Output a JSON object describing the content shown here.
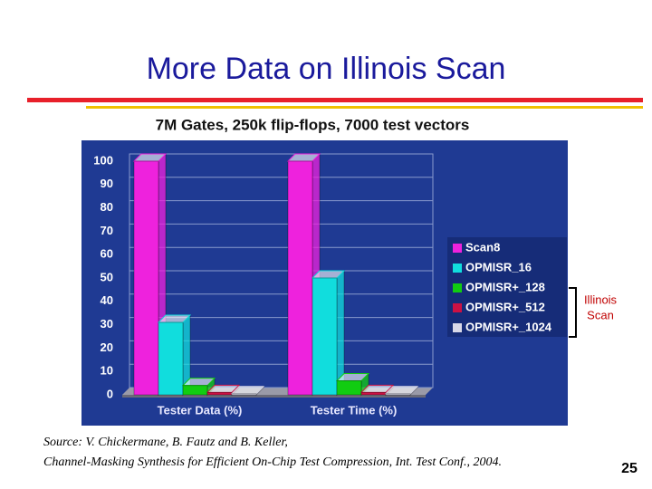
{
  "slide": {
    "title": "More Data on Illinois Scan",
    "source": [
      "Source: V. Chickermane, B. Fautz and B. Keller,",
      "Channel-Masking Synthesis for Efficient On-Chip Test Compression, Int. Test Conf., 2004."
    ],
    "page_number": "25"
  },
  "chart_data": {
    "type": "bar3d",
    "title": "7M Gates, 250k flip-flops, 7000 test vectors",
    "categories": [
      "Tester  Data (%)",
      "Tester  Time (%)"
    ],
    "series": [
      {
        "name": "Scan8",
        "color": "#ee22dd",
        "values": [
          100,
          100
        ]
      },
      {
        "name": "OPMISR_16",
        "color": "#11dddd",
        "values": [
          31,
          50
        ]
      },
      {
        "name": "OPMISR+_128",
        "color": "#11cc11",
        "values": [
          4,
          6
        ]
      },
      {
        "name": "OPMISR+_512",
        "color": "#cc1144",
        "values": [
          1,
          1
        ]
      },
      {
        "name": "OPMISR+_1024",
        "color": "#d8d8e8",
        "values": [
          0.5,
          0.5
        ]
      }
    ],
    "ylim": [
      0,
      100
    ],
    "yticks": [
      0,
      10,
      20,
      30,
      40,
      50,
      60,
      70,
      80,
      90,
      100
    ],
    "grid": true,
    "annotation": [
      "Illinois",
      "Scan"
    ]
  }
}
